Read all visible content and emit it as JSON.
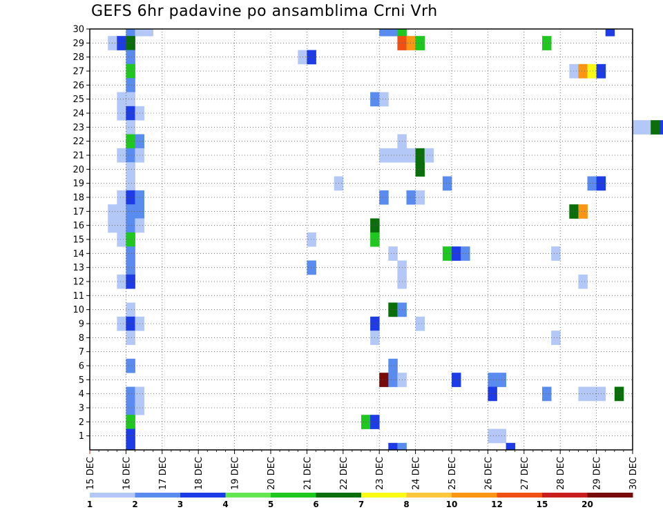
{
  "chart_data": {
    "type": "heatmap",
    "title": "GEFS 6hr padavine po ansamblima Crni Vrh",
    "xlabel": "",
    "ylabel": "",
    "x_ticks": [
      "15 DEC",
      "16 DEC",
      "17 DEC",
      "18 DEC",
      "19 DEC",
      "20 DEC",
      "21 DEC",
      "22 DEC",
      "23 DEC",
      "24 DEC",
      "25 DEC",
      "26 DEC",
      "27 DEC",
      "28 DEC",
      "29 DEC",
      "30 DEC"
    ],
    "y_ticks": [
      "1",
      "2",
      "3",
      "4",
      "5",
      "6",
      "7",
      "8",
      "9",
      "10",
      "11",
      "12",
      "13",
      "14",
      "15",
      "16",
      "17",
      "18",
      "19",
      "20",
      "21",
      "22",
      "23",
      "24",
      "25",
      "26",
      "27",
      "28",
      "29",
      "30"
    ],
    "ylim": [
      0,
      30
    ],
    "grid": true,
    "color_scale": {
      "labels": [
        "1",
        "2",
        "3",
        "4",
        "5",
        "6",
        "7",
        "8",
        "10",
        "12",
        "15",
        "20"
      ],
      "colors": [
        "#b4c8f8",
        "#5a8cf0",
        "#1e3ce6",
        "#64e650",
        "#1ec81e",
        "#0a6e0a",
        "#fafa14",
        "#ffc83c",
        "#fa9614",
        "#f05014",
        "#c81e1e",
        "#780a0a"
      ]
    },
    "cells": [
      {
        "m": 30,
        "d": "16 DEC",
        "h": 0,
        "v": 2
      },
      {
        "m": 30,
        "d": "16 DEC",
        "h": 6,
        "v": 1
      },
      {
        "m": 30,
        "d": "16 DEC",
        "h": 12,
        "v": 1
      },
      {
        "m": 30,
        "d": "23 DEC",
        "h": 0,
        "v": 2
      },
      {
        "m": 30,
        "d": "23 DEC",
        "h": 6,
        "v": 2
      },
      {
        "m": 30,
        "d": "23 DEC",
        "h": 12,
        "v": 5
      },
      {
        "m": 30,
        "d": "29 DEC",
        "h": 6,
        "v": 3
      },
      {
        "m": 29,
        "d": "15 DEC",
        "h": 12,
        "v": 1
      },
      {
        "m": 29,
        "d": "15 DEC",
        "h": 18,
        "v": 3
      },
      {
        "m": 29,
        "d": "16 DEC",
        "h": 0,
        "v": 6
      },
      {
        "m": 29,
        "d": "23 DEC",
        "h": 12,
        "v": 12
      },
      {
        "m": 29,
        "d": "23 DEC",
        "h": 18,
        "v": 10
      },
      {
        "m": 29,
        "d": "24 DEC",
        "h": 0,
        "v": 5
      },
      {
        "m": 29,
        "d": "27 DEC",
        "h": 12,
        "v": 5
      },
      {
        "m": 28,
        "d": "16 DEC",
        "h": 0,
        "v": 2
      },
      {
        "m": 28,
        "d": "20 DEC",
        "h": 18,
        "v": 1
      },
      {
        "m": 28,
        "d": "21 DEC",
        "h": 0,
        "v": 3
      },
      {
        "m": 27,
        "d": "16 DEC",
        "h": 0,
        "v": 5
      },
      {
        "m": 27,
        "d": "28 DEC",
        "h": 6,
        "v": 1
      },
      {
        "m": 27,
        "d": "28 DEC",
        "h": 12,
        "v": 10
      },
      {
        "m": 27,
        "d": "28 DEC",
        "h": 18,
        "v": 7
      },
      {
        "m": 27,
        "d": "29 DEC",
        "h": 0,
        "v": 3
      },
      {
        "m": 26,
        "d": "16 DEC",
        "h": 0,
        "v": 2
      },
      {
        "m": 25,
        "d": "15 DEC",
        "h": 18,
        "v": 1
      },
      {
        "m": 25,
        "d": "16 DEC",
        "h": 0,
        "v": 1
      },
      {
        "m": 25,
        "d": "22 DEC",
        "h": 18,
        "v": 2
      },
      {
        "m": 25,
        "d": "23 DEC",
        "h": 0,
        "v": 1
      },
      {
        "m": 24,
        "d": "15 DEC",
        "h": 18,
        "v": 1
      },
      {
        "m": 24,
        "d": "16 DEC",
        "h": 0,
        "v": 3
      },
      {
        "m": 24,
        "d": "16 DEC",
        "h": 6,
        "v": 1
      },
      {
        "m": 23,
        "d": "16 DEC",
        "h": 0,
        "v": 1
      },
      {
        "m": 23,
        "d": "30 DEC",
        "h": 0,
        "v": 1
      },
      {
        "m": 23,
        "d": "30 DEC",
        "h": 6,
        "v": 1
      },
      {
        "m": 23,
        "d": "30 DEC",
        "h": 12,
        "v": 6
      },
      {
        "m": 23,
        "d": "30 DEC",
        "h": 18,
        "v": 3
      },
      {
        "m": 22,
        "d": "16 DEC",
        "h": 0,
        "v": 5
      },
      {
        "m": 22,
        "d": "16 DEC",
        "h": 6,
        "v": 2
      },
      {
        "m": 22,
        "d": "23 DEC",
        "h": 12,
        "v": 1
      },
      {
        "m": 21,
        "d": "15 DEC",
        "h": 18,
        "v": 1
      },
      {
        "m": 21,
        "d": "16 DEC",
        "h": 0,
        "v": 2
      },
      {
        "m": 21,
        "d": "16 DEC",
        "h": 6,
        "v": 1
      },
      {
        "m": 21,
        "d": "23 DEC",
        "h": 0,
        "v": 1
      },
      {
        "m": 21,
        "d": "23 DEC",
        "h": 6,
        "v": 1
      },
      {
        "m": 21,
        "d": "23 DEC",
        "h": 12,
        "v": 1
      },
      {
        "m": 21,
        "d": "23 DEC",
        "h": 18,
        "v": 1
      },
      {
        "m": 21,
        "d": "24 DEC",
        "h": 0,
        "v": 6
      },
      {
        "m": 21,
        "d": "24 DEC",
        "h": 6,
        "v": 1
      },
      {
        "m": 20,
        "d": "16 DEC",
        "h": 0,
        "v": 1
      },
      {
        "m": 20,
        "d": "24 DEC",
        "h": 0,
        "v": 6
      },
      {
        "m": 19,
        "d": "16 DEC",
        "h": 0,
        "v": 1
      },
      {
        "m": 19,
        "d": "21 DEC",
        "h": 18,
        "v": 1
      },
      {
        "m": 19,
        "d": "24 DEC",
        "h": 18,
        "v": 2
      },
      {
        "m": 19,
        "d": "28 DEC",
        "h": 18,
        "v": 2
      },
      {
        "m": 19,
        "d": "29 DEC",
        "h": 0,
        "v": 3
      },
      {
        "m": 18,
        "d": "15 DEC",
        "h": 18,
        "v": 1
      },
      {
        "m": 18,
        "d": "16 DEC",
        "h": 0,
        "v": 3
      },
      {
        "m": 18,
        "d": "16 DEC",
        "h": 6,
        "v": 2
      },
      {
        "m": 18,
        "d": "23 DEC",
        "h": 0,
        "v": 2
      },
      {
        "m": 18,
        "d": "23 DEC",
        "h": 18,
        "v": 2
      },
      {
        "m": 18,
        "d": "24 DEC",
        "h": 0,
        "v": 1
      },
      {
        "m": 17,
        "d": "15 DEC",
        "h": 12,
        "v": 1
      },
      {
        "m": 17,
        "d": "15 DEC",
        "h": 18,
        "v": 1
      },
      {
        "m": 17,
        "d": "16 DEC",
        "h": 0,
        "v": 2
      },
      {
        "m": 17,
        "d": "16 DEC",
        "h": 6,
        "v": 2
      },
      {
        "m": 17,
        "d": "28 DEC",
        "h": 6,
        "v": 6
      },
      {
        "m": 17,
        "d": "28 DEC",
        "h": 12,
        "v": 10
      },
      {
        "m": 16,
        "d": "15 DEC",
        "h": 12,
        "v": 1
      },
      {
        "m": 16,
        "d": "15 DEC",
        "h": 18,
        "v": 1
      },
      {
        "m": 16,
        "d": "16 DEC",
        "h": 0,
        "v": 2
      },
      {
        "m": 16,
        "d": "16 DEC",
        "h": 6,
        "v": 1
      },
      {
        "m": 16,
        "d": "22 DEC",
        "h": 18,
        "v": 6
      },
      {
        "m": 15,
        "d": "15 DEC",
        "h": 18,
        "v": 1
      },
      {
        "m": 15,
        "d": "16 DEC",
        "h": 0,
        "v": 5
      },
      {
        "m": 15,
        "d": "21 DEC",
        "h": 0,
        "v": 1
      },
      {
        "m": 15,
        "d": "22 DEC",
        "h": 18,
        "v": 5
      },
      {
        "m": 14,
        "d": "16 DEC",
        "h": 0,
        "v": 2
      },
      {
        "m": 14,
        "d": "23 DEC",
        "h": 6,
        "v": 1
      },
      {
        "m": 14,
        "d": "24 DEC",
        "h": 18,
        "v": 5
      },
      {
        "m": 14,
        "d": "25 DEC",
        "h": 0,
        "v": 3
      },
      {
        "m": 14,
        "d": "25 DEC",
        "h": 6,
        "v": 2
      },
      {
        "m": 14,
        "d": "27 DEC",
        "h": 18,
        "v": 1
      },
      {
        "m": 13,
        "d": "16 DEC",
        "h": 0,
        "v": 2
      },
      {
        "m": 13,
        "d": "21 DEC",
        "h": 0,
        "v": 2
      },
      {
        "m": 13,
        "d": "23 DEC",
        "h": 12,
        "v": 1
      },
      {
        "m": 12,
        "d": "15 DEC",
        "h": 18,
        "v": 1
      },
      {
        "m": 12,
        "d": "16 DEC",
        "h": 0,
        "v": 3
      },
      {
        "m": 12,
        "d": "23 DEC",
        "h": 12,
        "v": 1
      },
      {
        "m": 12,
        "d": "28 DEC",
        "h": 12,
        "v": 1
      },
      {
        "m": 10,
        "d": "16 DEC",
        "h": 0,
        "v": 1
      },
      {
        "m": 10,
        "d": "23 DEC",
        "h": 6,
        "v": 6
      },
      {
        "m": 10,
        "d": "23 DEC",
        "h": 12,
        "v": 2
      },
      {
        "m": 9,
        "d": "15 DEC",
        "h": 18,
        "v": 1
      },
      {
        "m": 9,
        "d": "16 DEC",
        "h": 0,
        "v": 3
      },
      {
        "m": 9,
        "d": "16 DEC",
        "h": 6,
        "v": 1
      },
      {
        "m": 9,
        "d": "22 DEC",
        "h": 18,
        "v": 3
      },
      {
        "m": 9,
        "d": "24 DEC",
        "h": 0,
        "v": 1
      },
      {
        "m": 8,
        "d": "16 DEC",
        "h": 0,
        "v": 1
      },
      {
        "m": 8,
        "d": "22 DEC",
        "h": 18,
        "v": 1
      },
      {
        "m": 8,
        "d": "27 DEC",
        "h": 18,
        "v": 1
      },
      {
        "m": 6,
        "d": "16 DEC",
        "h": 0,
        "v": 2
      },
      {
        "m": 6,
        "d": "23 DEC",
        "h": 6,
        "v": 2
      },
      {
        "m": 5,
        "d": "23 DEC",
        "h": 0,
        "v": 20
      },
      {
        "m": 5,
        "d": "23 DEC",
        "h": 6,
        "v": 2
      },
      {
        "m": 5,
        "d": "23 DEC",
        "h": 12,
        "v": 1
      },
      {
        "m": 5,
        "d": "25 DEC",
        "h": 0,
        "v": 3
      },
      {
        "m": 5,
        "d": "26 DEC",
        "h": 0,
        "v": 2
      },
      {
        "m": 5,
        "d": "26 DEC",
        "h": 6,
        "v": 2
      },
      {
        "m": 4,
        "d": "16 DEC",
        "h": 0,
        "v": 2
      },
      {
        "m": 4,
        "d": "16 DEC",
        "h": 6,
        "v": 1
      },
      {
        "m": 4,
        "d": "26 DEC",
        "h": 0,
        "v": 3
      },
      {
        "m": 4,
        "d": "27 DEC",
        "h": 12,
        "v": 2
      },
      {
        "m": 4,
        "d": "28 DEC",
        "h": 12,
        "v": 1
      },
      {
        "m": 4,
        "d": "28 DEC",
        "h": 18,
        "v": 1
      },
      {
        "m": 4,
        "d": "29 DEC",
        "h": 0,
        "v": 1
      },
      {
        "m": 4,
        "d": "29 DEC",
        "h": 12,
        "v": 6
      },
      {
        "m": 3,
        "d": "16 DEC",
        "h": 0,
        "v": 2
      },
      {
        "m": 3,
        "d": "16 DEC",
        "h": 6,
        "v": 1
      },
      {
        "m": 2,
        "d": "16 DEC",
        "h": 0,
        "v": 5
      },
      {
        "m": 2,
        "d": "22 DEC",
        "h": 12,
        "v": 5
      },
      {
        "m": 2,
        "d": "22 DEC",
        "h": 18,
        "v": 3
      },
      {
        "m": 1,
        "d": "16 DEC",
        "h": 0,
        "v": 3
      },
      {
        "m": 1,
        "d": "26 DEC",
        "h": 0,
        "v": 1
      },
      {
        "m": 1,
        "d": "26 DEC",
        "h": 6,
        "v": 1
      },
      {
        "m": 0,
        "d": "16 DEC",
        "h": 0,
        "v": 3
      },
      {
        "m": 0,
        "d": "23 DEC",
        "h": 6,
        "v": 3
      },
      {
        "m": 0,
        "d": "23 DEC",
        "h": 12,
        "v": 2
      },
      {
        "m": 0,
        "d": "26 DEC",
        "h": 12,
        "v": 3
      }
    ]
  }
}
